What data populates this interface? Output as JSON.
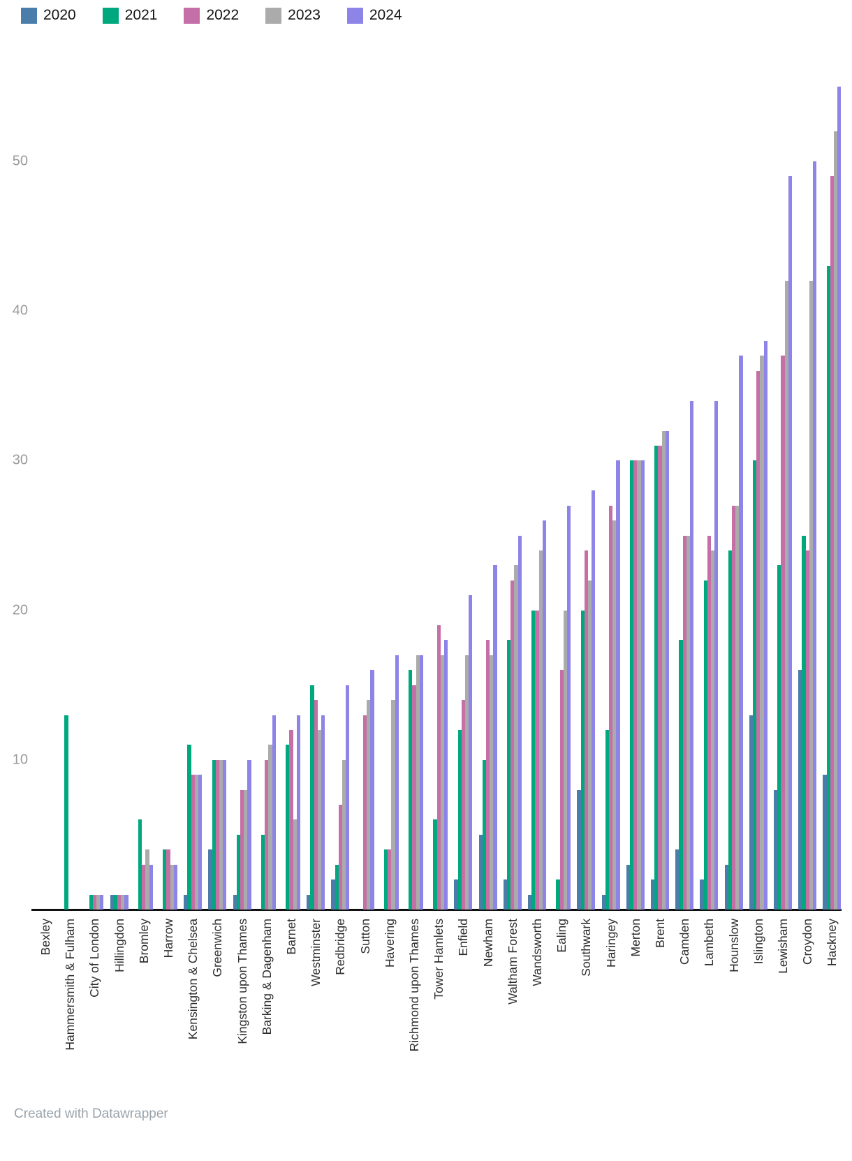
{
  "legend": {
    "items": [
      {
        "label": "2020",
        "color": "#4b7dab"
      },
      {
        "label": "2021",
        "color": "#00a87e"
      },
      {
        "label": "2022",
        "color": "#c46fa5"
      },
      {
        "label": "2023",
        "color": "#ababab"
      },
      {
        "label": "2024",
        "color": "#8d84e8"
      }
    ]
  },
  "chart_data": {
    "type": "bar",
    "title": "",
    "xlabel": "",
    "ylabel": "",
    "ylim": [
      0,
      57
    ],
    "yticks": [
      10,
      20,
      30,
      40,
      50
    ],
    "grid": false,
    "legend_position": "top-left",
    "categories": [
      "Bexley",
      "Hammersmith & Fulham",
      "City of London",
      "Hillingdon",
      "Bromley",
      "Harrow",
      "Kensington & Chelsea",
      "Greenwich",
      "Kingston upon Thames",
      "Barking & Dagenham",
      "Barnet",
      "Westminster",
      "Redbridge",
      "Sutton",
      "Havering",
      "Richmond upon Thames",
      "Tower Hamlets",
      "Enfield",
      "Newham",
      "Waltham Forest",
      "Wandsworth",
      "Ealing",
      "Southwark",
      "Haringey",
      "Merton",
      "Brent",
      "Camden",
      "Lambeth",
      "Hounslow",
      "Islington",
      "Lewisham",
      "Croydon",
      "Hackney"
    ],
    "series": [
      {
        "name": "2020",
        "color": "#4b7dab",
        "values": [
          0,
          0,
          0,
          1,
          0,
          0,
          1,
          4,
          1,
          0,
          0,
          1,
          2,
          0,
          0,
          0,
          0,
          2,
          5,
          2,
          1,
          0,
          8,
          1,
          3,
          2,
          4,
          2,
          3,
          13,
          8,
          16,
          9
        ]
      },
      {
        "name": "2021",
        "color": "#00a87e",
        "values": [
          0,
          13,
          1,
          1,
          6,
          4,
          11,
          10,
          5,
          5,
          11,
          15,
          3,
          0,
          4,
          16,
          6,
          12,
          10,
          18,
          20,
          2,
          20,
          12,
          30,
          31,
          18,
          22,
          24,
          30,
          23,
          25,
          43
        ]
      },
      {
        "name": "2022",
        "color": "#c46fa5",
        "values": [
          0,
          0,
          1,
          1,
          3,
          4,
          9,
          10,
          8,
          10,
          12,
          14,
          7,
          13,
          4,
          15,
          19,
          14,
          18,
          22,
          20,
          16,
          24,
          27,
          30,
          31,
          25,
          25,
          27,
          36,
          37,
          24,
          49
        ]
      },
      {
        "name": "2023",
        "color": "#ababab",
        "values": [
          0,
          0,
          1,
          1,
          4,
          3,
          9,
          10,
          8,
          11,
          6,
          12,
          10,
          14,
          14,
          17,
          17,
          17,
          17,
          23,
          24,
          20,
          22,
          26,
          30,
          32,
          25,
          24,
          27,
          37,
          42,
          42,
          52
        ]
      },
      {
        "name": "2024",
        "color": "#8d84e8",
        "values": [
          0,
          0,
          1,
          1,
          3,
          3,
          9,
          10,
          10,
          13,
          13,
          13,
          15,
          16,
          17,
          17,
          18,
          21,
          23,
          25,
          26,
          27,
          28,
          30,
          30,
          32,
          34,
          34,
          37,
          38,
          49,
          50,
          55
        ]
      }
    ]
  },
  "footer": {
    "text": "Created with Datawrapper"
  }
}
